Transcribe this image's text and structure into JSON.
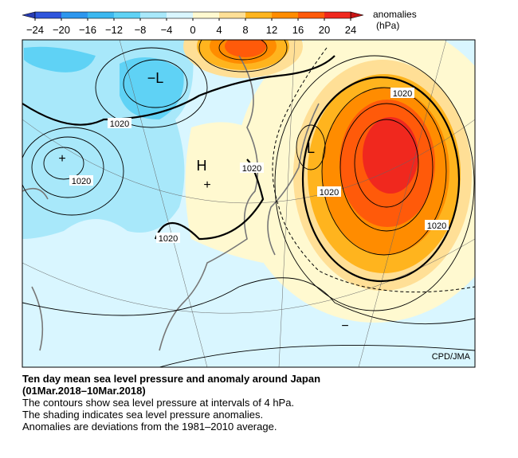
{
  "colorbar": {
    "title": "anomalies",
    "unit": "(hPa)",
    "ticks": [
      {
        "value": -24,
        "label": "−24"
      },
      {
        "value": -20,
        "label": "−20"
      },
      {
        "value": -16,
        "label": "−16"
      },
      {
        "value": -12,
        "label": "−12"
      },
      {
        "value": -8,
        "label": "−8"
      },
      {
        "value": -4,
        "label": "−4"
      },
      0,
      4,
      8,
      12,
      16,
      20,
      24
    ],
    "colors": [
      "#2f55dc",
      "#2d96ee",
      "#3cb8f0",
      "#5fd2f5",
      "#a8e8fa",
      "#d9f6ff",
      "#fff9d0",
      "#ffdf96",
      "#ffb41e",
      "#ff8c00",
      "#ff5a0a",
      "#f0281e"
    ],
    "low_color": "#283cb4",
    "high_color": "#c81414"
  },
  "map": {
    "labels": [
      "−L",
      "H",
      "+",
      "L",
      "+",
      "−"
    ],
    "contour_labels": [
      "1020",
      "1020",
      "1020",
      "1020",
      "1020",
      "1020",
      "1020"
    ],
    "credit": "CPD/JMA"
  },
  "caption": {
    "title": "Ten day mean sea level pressure and anomaly around Japan",
    "period": "(01Mar.2018–10Mar.2018)",
    "lines": [
      "The contours show sea level pressure at intervals of 4 hPa.",
      "The shading indicates sea level pressure anomalies.",
      "Anomalies are deviations from the 1981–2010 average."
    ]
  }
}
